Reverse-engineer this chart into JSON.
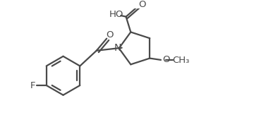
{
  "background_color": "#ffffff",
  "line_color": "#4a4a4a",
  "line_width": 1.6,
  "text_color": "#4a4a4a",
  "font_size": 9.5,
  "figsize": [
    3.6,
    1.8
  ],
  "dpi": 100,
  "xlim": [
    0,
    10
  ],
  "ylim": [
    0,
    5
  ]
}
